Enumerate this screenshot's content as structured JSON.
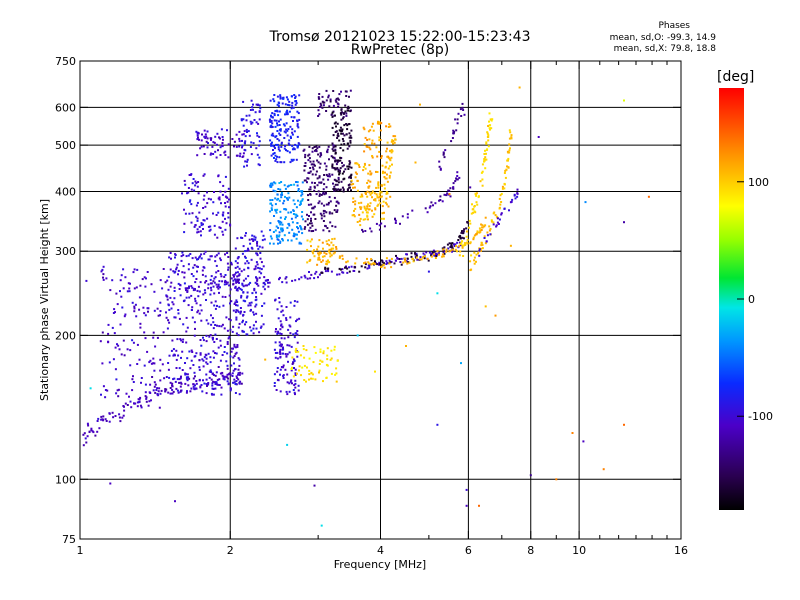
{
  "title": "Tromsø 20121023 15:22:00-15:23:43",
  "subtitle": "RwPretec (8p)",
  "phases": {
    "title": "Phases",
    "o_line": "mean, sd,O: -99.3, 14.9",
    "x_line": "mean, sd,X:  79.8, 18.8"
  },
  "chart_data": {
    "type": "scatter",
    "xlabel": "Frequency [MHz]",
    "ylabel": "Stationary phase Virtual Height [km]",
    "x_scale": "log",
    "y_scale": "log",
    "xlim": [
      1,
      16
    ],
    "ylim": [
      75,
      750
    ],
    "x_ticks": [
      1,
      2,
      4,
      6,
      8,
      10,
      16
    ],
    "x_tick_labels": [
      "1",
      "2",
      "4",
      "6",
      "8",
      "10",
      "16"
    ],
    "x_grid": [
      2,
      4,
      6,
      8,
      10
    ],
    "x_minor_ticks": [
      3,
      5,
      7,
      9,
      11,
      12,
      13,
      14,
      15
    ],
    "y_ticks": [
      75,
      100,
      200,
      300,
      400,
      500,
      600,
      750
    ],
    "y_tick_labels": [
      "75",
      "100",
      "200",
      "300",
      "400",
      "500",
      "600",
      "750"
    ],
    "y_grid": [
      100,
      200,
      300,
      400,
      500,
      600
    ],
    "colorbar": {
      "label": "[deg]",
      "range": [
        -180,
        180
      ],
      "ticks": [
        -100,
        0,
        100
      ],
      "tick_labels": [
        "-100",
        "0",
        "100"
      ]
    },
    "traces": [
      {
        "points": [
          [
            1.02,
            120
          ],
          [
            1.06,
            128
          ],
          [
            1.12,
            133
          ],
          [
            1.2,
            138
          ],
          [
            1.3,
            145
          ],
          [
            1.4,
            150
          ],
          [
            1.5,
            155
          ],
          [
            1.6,
            157
          ],
          [
            1.75,
            160
          ],
          [
            1.9,
            163
          ],
          [
            2.0,
            165
          ],
          [
            2.1,
            166
          ]
        ],
        "phase": -110,
        "spread": 0.05,
        "density": 12
      },
      {
        "points": [
          [
            1.6,
            250
          ],
          [
            1.8,
            252
          ],
          [
            2.0,
            255
          ],
          [
            2.3,
            258
          ],
          [
            2.6,
            262
          ],
          [
            3.0,
            268
          ],
          [
            3.5,
            275
          ],
          [
            4.0,
            282
          ],
          [
            4.5,
            290
          ],
          [
            5.0,
            296
          ],
          [
            5.5,
            303
          ],
          [
            5.8,
            310
          ]
        ],
        "phase": -105,
        "spread": 0.025,
        "density": 14
      },
      {
        "points": [
          [
            3.0,
            272
          ],
          [
            3.5,
            276
          ],
          [
            4.0,
            282
          ],
          [
            4.5,
            288
          ],
          [
            5.0,
            294
          ],
          [
            5.5,
            303
          ],
          [
            5.8,
            320
          ],
          [
            6.0,
            345
          ]
        ],
        "phase": -160,
        "spread": 0.03,
        "density": 12
      },
      {
        "points": [
          [
            3.6,
            330
          ],
          [
            4.2,
            345
          ],
          [
            4.8,
            360
          ],
          [
            5.3,
            385
          ],
          [
            5.6,
            410
          ],
          [
            5.8,
            440
          ]
        ],
        "phase": -120,
        "spread": 0.03,
        "density": 10
      },
      {
        "points": [
          [
            3.0,
            300
          ],
          [
            3.5,
            288
          ],
          [
            4.0,
            282
          ],
          [
            4.5,
            287
          ],
          [
            5.0,
            293
          ],
          [
            5.5,
            300
          ],
          [
            6.0,
            312
          ],
          [
            6.3,
            330
          ],
          [
            6.5,
            350
          ]
        ],
        "phase": 110,
        "spread": 0.03,
        "density": 12
      },
      {
        "points": [
          [
            6.0,
            280
          ],
          [
            6.3,
            300
          ],
          [
            6.6,
            330
          ],
          [
            6.9,
            370
          ],
          [
            7.1,
            420
          ],
          [
            7.2,
            470
          ],
          [
            7.3,
            540
          ]
        ],
        "phase": 105,
        "spread": 0.035,
        "density": 12
      },
      {
        "points": [
          [
            5.8,
            300
          ],
          [
            6.0,
            330
          ],
          [
            6.2,
            380
          ],
          [
            6.4,
            430
          ],
          [
            6.5,
            480
          ],
          [
            6.6,
            540
          ],
          [
            6.7,
            590
          ]
        ],
        "phase": 95,
        "spread": 0.04,
        "density": 12
      },
      {
        "points": [
          [
            6.3,
            300
          ],
          [
            6.8,
            340
          ],
          [
            7.3,
            380
          ],
          [
            7.6,
            400
          ]
        ],
        "phase": -100,
        "spread": 0.03,
        "density": 10
      },
      {
        "points": [
          [
            3.6,
            340
          ],
          [
            3.9,
            380
          ],
          [
            4.1,
            430
          ],
          [
            4.2,
            480
          ],
          [
            4.3,
            540
          ]
        ],
        "phase": 105,
        "spread": 0.05,
        "density": 12
      },
      {
        "points": [
          [
            5.2,
            440
          ],
          [
            5.5,
            500
          ],
          [
            5.7,
            560
          ],
          [
            5.9,
            600
          ]
        ],
        "phase": -130,
        "spread": 0.035,
        "density": 9
      }
    ],
    "clusters": [
      {
        "x": [
          1.1,
          1.5
        ],
        "y": [
          140,
          280
        ],
        "phase": -105,
        "n": 160
      },
      {
        "x": [
          1.5,
          2.1
        ],
        "y": [
          150,
          300
        ],
        "phase": -100,
        "n": 420
      },
      {
        "x": [
          1.6,
          2.0
        ],
        "y": [
          320,
          440
        ],
        "phase": -100,
        "n": 110
      },
      {
        "x": [
          1.7,
          2.15
        ],
        "y": [
          470,
          540
        ],
        "phase": -105,
        "n": 80
      },
      {
        "x": [
          2.05,
          2.35
        ],
        "y": [
          200,
          330
        ],
        "phase": -95,
        "n": 150
      },
      {
        "x": [
          2.1,
          2.3
        ],
        "y": [
          450,
          620
        ],
        "phase": -90,
        "n": 55
      },
      {
        "x": [
          2.4,
          2.75
        ],
        "y": [
          460,
          640
        ],
        "phase": -80,
        "n": 170
      },
      {
        "x": [
          2.4,
          2.8
        ],
        "y": [
          310,
          420
        ],
        "phase": -40,
        "n": 160
      },
      {
        "x": [
          2.45,
          2.75
        ],
        "y": [
          150,
          240
        ],
        "phase": -100,
        "n": 130
      },
      {
        "x": [
          2.8,
          3.3
        ],
        "y": [
          330,
          500
        ],
        "phase": -140,
        "n": 190
      },
      {
        "x": [
          3.0,
          3.5
        ],
        "y": [
          570,
          650
        ],
        "phase": -140,
        "n": 55
      },
      {
        "x": [
          3.2,
          3.5
        ],
        "y": [
          400,
          600
        ],
        "phase": -160,
        "n": 140
      },
      {
        "x": [
          2.85,
          3.3
        ],
        "y": [
          280,
          320
        ],
        "phase": 110,
        "n": 55
      },
      {
        "x": [
          2.65,
          3.3
        ],
        "y": [
          160,
          190
        ],
        "phase": 90,
        "n": 65
      },
      {
        "x": [
          3.5,
          4.2
        ],
        "y": [
          350,
          460
        ],
        "phase": 110,
        "n": 120
      },
      {
        "x": [
          3.7,
          4.2
        ],
        "y": [
          470,
          560
        ],
        "phase": 115,
        "n": 45
      }
    ],
    "scattered": [
      [
        1.03,
        260,
        -100
      ],
      [
        1.05,
        155,
        -10
      ],
      [
        1.15,
        98,
        -110
      ],
      [
        1.22,
        275,
        -95
      ],
      [
        1.55,
        90,
        -110
      ],
      [
        2.6,
        118,
        -15
      ],
      [
        2.95,
        97,
        -120
      ],
      [
        3.05,
        80,
        -10
      ],
      [
        3.6,
        200,
        -20
      ],
      [
        4.5,
        190,
        110
      ],
      [
        5.2,
        245,
        -10
      ],
      [
        5.5,
        395,
        130
      ],
      [
        5.8,
        175,
        -30
      ],
      [
        5.95,
        95,
        -100
      ],
      [
        5.95,
        88,
        -110
      ],
      [
        6.3,
        88,
        140
      ],
      [
        6.8,
        220,
        120
      ],
      [
        7.6,
        660,
        110
      ],
      [
        8.3,
        520,
        -110
      ],
      [
        9.0,
        100,
        130
      ],
      [
        9.7,
        125,
        130
      ],
      [
        10.2,
        120,
        -110
      ],
      [
        10.3,
        380,
        -40
      ],
      [
        11.2,
        105,
        130
      ],
      [
        12.3,
        620,
        70
      ],
      [
        12.3,
        345,
        -120
      ],
      [
        12.3,
        130,
        140
      ],
      [
        13.8,
        390,
        140
      ],
      [
        8.0,
        102,
        -130
      ],
      [
        5.2,
        130,
        -90
      ],
      [
        4.8,
        608,
        110
      ],
      [
        3.9,
        168,
        90
      ],
      [
        4.7,
        460,
        110
      ],
      [
        7.3,
        308,
        110
      ],
      [
        5.0,
        272,
        -90
      ],
      [
        2.35,
        178,
        110
      ],
      [
        6.05,
        408,
        -120
      ],
      [
        6.5,
        230,
        105
      ]
    ]
  }
}
